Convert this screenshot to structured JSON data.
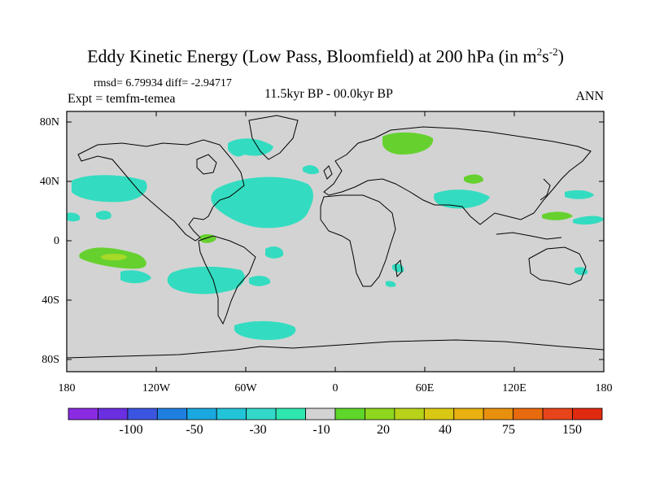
{
  "title": {
    "prefix": "Eddy Kinetic Energy (Low Pass, Bloomfield) at 200 hPa (in m",
    "sup1": "2",
    "mid": "s",
    "sup2": "-2",
    "suffix": ")"
  },
  "stats_text": "rmsd= 6.79934 diff= -2.94717",
  "expt_text": "Expt = temfm-temea",
  "period_text": "11.5kyr BP - 00.0kyr BP",
  "season_text": "ANN",
  "lat_labels": [
    "80N",
    "40N",
    "0",
    "40S",
    "80S"
  ],
  "lon_labels": [
    "180",
    "120W",
    "60W",
    "0",
    "60E",
    "120E",
    "180"
  ],
  "colorbar": {
    "colors": [
      "#8a2be2",
      "#6a2fe0",
      "#3b55e0",
      "#1f7fe0",
      "#1aa8e0",
      "#22c4d8",
      "#33d9c8",
      "#2ee6b0",
      "#d3d3d3",
      "#5fd62a",
      "#8fd61e",
      "#b8d21a",
      "#d8c814",
      "#e8b010",
      "#e8900e",
      "#e86a0e",
      "#e8441a",
      "#e02a10"
    ],
    "labels": [
      "-100",
      "-50",
      "-30",
      "-10",
      "20",
      "40",
      "75",
      "150"
    ]
  },
  "map_colors": {
    "background": "#d3d3d3",
    "negative_fill": "#33dcc0",
    "negative_dark": "#1ec8d8",
    "positive_fill": "#66d12e",
    "positive_light": "#a8d828",
    "coast": "#000000"
  }
}
